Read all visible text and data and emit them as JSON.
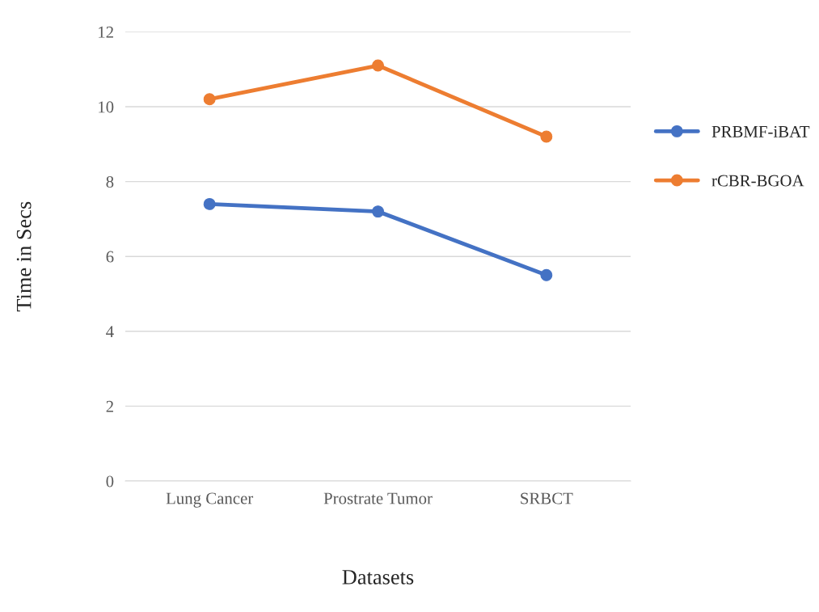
{
  "chart_data": {
    "type": "line",
    "xlabel": "Datasets",
    "ylabel": "Time in Secs",
    "categories": [
      "Lung Cancer",
      "Prostrate Tumor",
      "SRBCT"
    ],
    "series": [
      {
        "name": "PRBMF-iBAT",
        "color": "#4472c4",
        "values": [
          7.4,
          7.2,
          5.5
        ]
      },
      {
        "name": "rCBR-BGOA",
        "color": "#ed7d31",
        "values": [
          10.2,
          11.1,
          9.2
        ]
      }
    ],
    "ylim": [
      0,
      12
    ],
    "yticks": [
      0,
      2,
      4,
      6,
      8,
      10,
      12
    ],
    "grid": "y",
    "legend": "right",
    "marker": "circle",
    "line_style": "solid"
  }
}
